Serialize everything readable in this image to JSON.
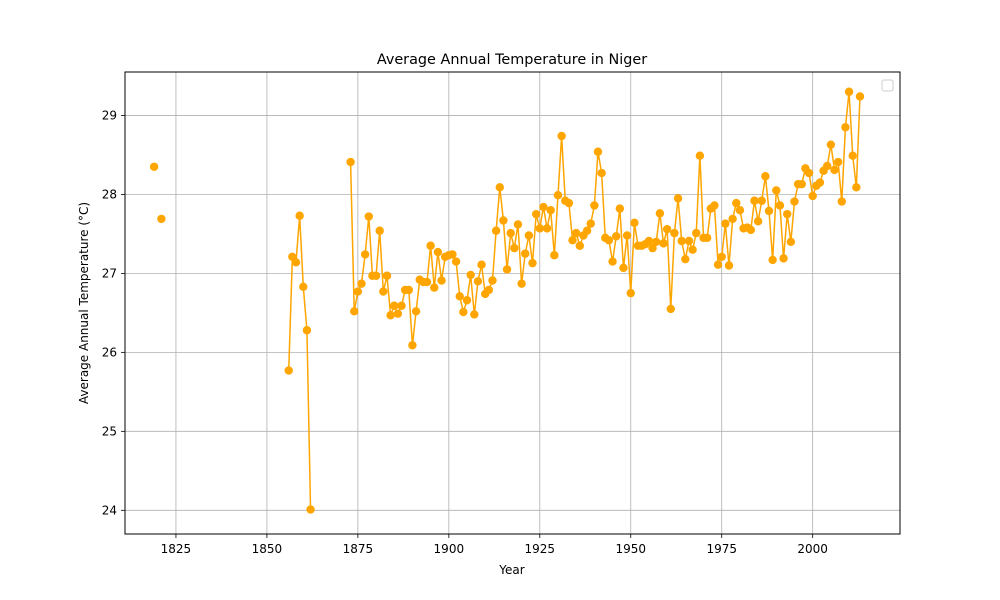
{
  "chart_data": {
    "type": "line",
    "title": "Average Annual Temperature in Niger",
    "xlabel": "Year",
    "ylabel": "Average Annual Temperature (°C)",
    "xlim": [
      1811,
      2024
    ],
    "ylim": [
      23.7,
      29.55
    ],
    "xticks": [
      1825,
      1850,
      1875,
      1900,
      1925,
      1950,
      1975,
      2000
    ],
    "yticks": [
      24,
      25,
      26,
      27,
      28,
      29
    ],
    "grid": true,
    "legend": "top-right, empty",
    "colors": {
      "series": "#ffa500",
      "grid": "#b0b0b0"
    },
    "series": [
      {
        "x": [
          1819,
          1820,
          1821,
          1822,
          1823,
          1824,
          1825,
          1826,
          1827,
          1828,
          1829,
          1830,
          1831,
          1832,
          1833,
          1834,
          1835,
          1836,
          1837,
          1838,
          1839,
          1840,
          1841,
          1842,
          1843,
          1844,
          1845,
          1846,
          1847,
          1848,
          1849,
          1850,
          1851,
          1852,
          1853,
          1854,
          1855,
          1856,
          1857,
          1858,
          1859,
          1860,
          1861,
          1862,
          1863,
          1864,
          1865,
          1866,
          1867,
          1868,
          1869,
          1870,
          1871,
          1872,
          1873,
          1874,
          1875,
          1876,
          1877,
          1878,
          1879,
          1880,
          1881,
          1882,
          1883,
          1884,
          1885,
          1886,
          1887,
          1888,
          1889,
          1890,
          1891,
          1892,
          1893,
          1894,
          1895,
          1896,
          1897,
          1898,
          1899,
          1900,
          1901,
          1902,
          1903,
          1904,
          1905,
          1906,
          1907,
          1908,
          1909,
          1910,
          1911,
          1912,
          1913,
          1914,
          1915,
          1916,
          1917,
          1918,
          1919,
          1920,
          1921,
          1922,
          1923,
          1924,
          1925,
          1926,
          1927,
          1928,
          1929,
          1930,
          1931,
          1932,
          1933,
          1934,
          1935,
          1936,
          1937,
          1938,
          1939,
          1940,
          1941,
          1942,
          1943,
          1944,
          1945,
          1946,
          1947,
          1948,
          1949,
          1950,
          1951,
          1952,
          1953,
          1954,
          1955,
          1956,
          1957,
          1958,
          1959,
          1960,
          1961,
          1962,
          1963,
          1964,
          1965,
          1966,
          1967,
          1968,
          1969,
          1970,
          1971,
          1972,
          1973,
          1974,
          1975,
          1976,
          1977,
          1978,
          1979,
          1980,
          1981,
          1982,
          1983,
          1984,
          1985,
          1986,
          1987,
          1988,
          1989,
          1990,
          1991,
          1992,
          1993,
          1994,
          1995,
          1996,
          1997,
          1998,
          1999,
          2000,
          2001,
          2002,
          2003,
          2004,
          2005,
          2006,
          2007,
          2008,
          2009,
          2010,
          2011,
          2012,
          2013
        ],
        "y": [
          28.35,
          null,
          27.69,
          null,
          null,
          null,
          null,
          null,
          null,
          null,
          null,
          null,
          null,
          null,
          null,
          null,
          null,
          null,
          null,
          null,
          null,
          null,
          null,
          null,
          null,
          null,
          null,
          null,
          null,
          null,
          null,
          null,
          null,
          null,
          null,
          null,
          null,
          25.77,
          27.21,
          27.14,
          27.73,
          26.83,
          26.28,
          24.01,
          null,
          null,
          null,
          null,
          null,
          null,
          null,
          null,
          null,
          null,
          28.41,
          26.52,
          26.77,
          26.87,
          27.24,
          27.72,
          26.97,
          26.97,
          27.54,
          26.77,
          26.97,
          26.47,
          26.59,
          26.49,
          26.59,
          26.79,
          26.79,
          26.09,
          26.52,
          26.92,
          26.89,
          26.89,
          27.35,
          26.82,
          27.27,
          26.91,
          27.21,
          27.23,
          27.24,
          27.15,
          26.71,
          26.51,
          26.66,
          26.98,
          26.48,
          26.9,
          27.11,
          26.74,
          26.79,
          26.91,
          27.54,
          28.09,
          27.67,
          27.05,
          27.51,
          27.32,
          27.62,
          26.87,
          27.25,
          27.48,
          27.13,
          27.75,
          27.57,
          27.84,
          27.57,
          27.8,
          27.23,
          27.99,
          28.74,
          27.92,
          27.89,
          27.42,
          27.51,
          27.35,
          27.48,
          27.54,
          27.63,
          27.86,
          28.54,
          28.27,
          27.45,
          27.42,
          27.15,
          27.47,
          27.82,
          27.07,
          27.48,
          26.75,
          27.64,
          27.35,
          27.35,
          27.37,
          27.41,
          27.32,
          27.4,
          27.76,
          27.38,
          27.56,
          26.55,
          27.51,
          27.95,
          27.41,
          27.18,
          27.41,
          27.3,
          27.51,
          28.49,
          27.45,
          27.45,
          27.82,
          27.86,
          27.11,
          27.21,
          27.63,
          27.1,
          27.69,
          27.89,
          27.8,
          27.57,
          27.58,
          27.55,
          27.92,
          27.66,
          27.92,
          28.23,
          27.79,
          27.17,
          28.05,
          27.86,
          27.19,
          27.75,
          27.4,
          27.91,
          28.13,
          28.13,
          28.33,
          28.27,
          27.98,
          28.11,
          28.15,
          28.3,
          28.36,
          28.63,
          28.31,
          28.41,
          27.91,
          28.85,
          29.3,
          28.49,
          28.09,
          29.24
        ]
      }
    ]
  }
}
